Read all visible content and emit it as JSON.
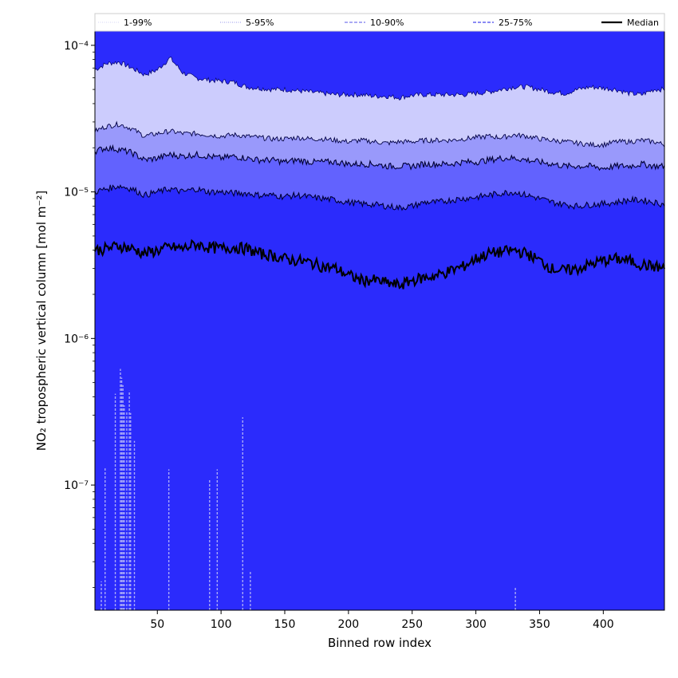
{
  "chart_data": {
    "type": "area",
    "title": "",
    "xlabel": "Binned row index",
    "ylabel": "NO₂ tropospheric vertical column [mol m⁻²]",
    "xlim": [
      1,
      448
    ],
    "ylim": [
      1.4e-08,
      0.000125
    ],
    "yscale": "log",
    "grid": false,
    "legend_position": "top",
    "x_ticks": [
      50,
      100,
      150,
      200,
      250,
      300,
      350,
      400
    ],
    "x_tick_labels": [
      "50",
      "100",
      "150",
      "200",
      "250",
      "300",
      "350",
      "400"
    ],
    "y_ticks": [
      1e-07,
      1e-06,
      1e-05,
      0.0001
    ],
    "y_tick_labels": [
      "10⁻⁷",
      "10⁻⁶",
      "10⁻⁵",
      "10⁻⁴"
    ],
    "legend": [
      {
        "label": "1-99%",
        "color": "#ddddf6",
        "style": "dotted"
      },
      {
        "label": "5-95%",
        "color": "#aaaaee",
        "style": "dotted"
      },
      {
        "label": "10-90%",
        "color": "#7777ee",
        "style": "dashed"
      },
      {
        "label": "25-75%",
        "color": "#4444ee",
        "style": "dashed"
      },
      {
        "label": "Median",
        "color": "#000000",
        "style": "solid"
      }
    ],
    "band_colors": {
      "p5_p95": "#ccccfd",
      "p10_p90": "#9999fb",
      "p25_p75": "#6262fe",
      "inner": "#2b2bfc"
    },
    "x": [
      1,
      10,
      20,
      30,
      40,
      50,
      60,
      70,
      80,
      90,
      100,
      110,
      120,
      130,
      140,
      150,
      160,
      170,
      180,
      190,
      200,
      210,
      220,
      230,
      240,
      250,
      260,
      270,
      280,
      290,
      300,
      310,
      320,
      330,
      340,
      350,
      360,
      370,
      380,
      390,
      400,
      410,
      420,
      430,
      440,
      448
    ],
    "series": [
      {
        "name": "5-95%",
        "lower": [
          2.6e-05,
          2.8e-05,
          2.9e-05,
          2.7e-05,
          2.4e-05,
          2.5e-05,
          2.6e-05,
          2.5e-05,
          2.5e-05,
          2.45e-05,
          2.4e-05,
          2.45e-05,
          2.4e-05,
          2.35e-05,
          2.3e-05,
          2.3e-05,
          2.35e-05,
          2.3e-05,
          2.3e-05,
          2.25e-05,
          2.2e-05,
          2.25e-05,
          2.2e-05,
          2.15e-05,
          2.2e-05,
          2.2e-05,
          2.25e-05,
          2.25e-05,
          2.25e-05,
          2.3e-05,
          2.35e-05,
          2.4e-05,
          2.35e-05,
          2.45e-05,
          2.4e-05,
          2.3e-05,
          2.25e-05,
          2.2e-05,
          2.15e-05,
          2.1e-05,
          2.1e-05,
          2.2e-05,
          2.2e-05,
          2.25e-05,
          2.2e-05,
          2.1e-05
        ],
        "upper": [
          6.8e-05,
          7.5e-05,
          7.7e-05,
          7e-05,
          6.3e-05,
          6.8e-05,
          8.2e-05,
          6.5e-05,
          6e-05,
          5.8e-05,
          5.7e-05,
          5.6e-05,
          5.2e-05,
          5.1e-05,
          5e-05,
          5e-05,
          4.9e-05,
          4.8e-05,
          4.7e-05,
          4.6e-05,
          4.6e-05,
          4.6e-05,
          4.5e-05,
          4.5e-05,
          4.4e-05,
          4.55e-05,
          4.6e-05,
          4.6e-05,
          4.6e-05,
          4.6e-05,
          4.7e-05,
          4.8e-05,
          5e-05,
          5.2e-05,
          5.2e-05,
          5e-05,
          4.8e-05,
          4.7e-05,
          5e-05,
          5.2e-05,
          5.1e-05,
          5e-05,
          4.7e-05,
          4.6e-05,
          5e-05,
          5e-05
        ]
      },
      {
        "name": "10-90%",
        "lower": [
          1.9e-05,
          2e-05,
          1.95e-05,
          1.85e-05,
          1.65e-05,
          1.7e-05,
          1.8e-05,
          1.75e-05,
          1.8e-05,
          1.75e-05,
          1.7e-05,
          1.75e-05,
          1.7e-05,
          1.65e-05,
          1.65e-05,
          1.6e-05,
          1.65e-05,
          1.6e-05,
          1.6e-05,
          1.6e-05,
          1.55e-05,
          1.55e-05,
          1.55e-05,
          1.5e-05,
          1.5e-05,
          1.5e-05,
          1.55e-05,
          1.55e-05,
          1.55e-05,
          1.6e-05,
          1.6e-05,
          1.65e-05,
          1.7e-05,
          1.7e-05,
          1.65e-05,
          1.6e-05,
          1.55e-05,
          1.5e-05,
          1.5e-05,
          1.5e-05,
          1.45e-05,
          1.5e-05,
          1.5e-05,
          1.55e-05,
          1.5e-05,
          1.5e-05
        ],
        "upper": [
          2.6e-05,
          2.8e-05,
          2.9e-05,
          2.7e-05,
          2.4e-05,
          2.5e-05,
          2.6e-05,
          2.5e-05,
          2.5e-05,
          2.45e-05,
          2.4e-05,
          2.45e-05,
          2.4e-05,
          2.35e-05,
          2.3e-05,
          2.3e-05,
          2.35e-05,
          2.3e-05,
          2.3e-05,
          2.25e-05,
          2.2e-05,
          2.25e-05,
          2.2e-05,
          2.15e-05,
          2.2e-05,
          2.2e-05,
          2.25e-05,
          2.25e-05,
          2.25e-05,
          2.3e-05,
          2.35e-05,
          2.4e-05,
          2.35e-05,
          2.45e-05,
          2.4e-05,
          2.3e-05,
          2.25e-05,
          2.2e-05,
          2.15e-05,
          2.1e-05,
          2.1e-05,
          2.2e-05,
          2.2e-05,
          2.25e-05,
          2.2e-05,
          2.1e-05
        ]
      },
      {
        "name": "25-75%",
        "lower": [
          1e-05,
          1.05e-05,
          1.1e-05,
          1.05e-05,
          9.5e-06,
          1e-05,
          1.05e-05,
          1e-05,
          1.05e-05,
          1e-05,
          1e-05,
          9.8e-06,
          9.8e-06,
          9.5e-06,
          9.5e-06,
          9.3e-06,
          9.5e-06,
          9.2e-06,
          9e-06,
          8.8e-06,
          8.5e-06,
          8.3e-06,
          8.2e-06,
          8e-06,
          7.8e-06,
          8e-06,
          8.5e-06,
          8.5e-06,
          8.8e-06,
          9e-06,
          9.2e-06,
          9.5e-06,
          9.8e-06,
          1e-05,
          9.5e-06,
          9e-06,
          8.5e-06,
          8.2e-06,
          8e-06,
          8.2e-06,
          8.3e-06,
          8.5e-06,
          8.8e-06,
          8.8e-06,
          8.5e-06,
          8.2e-06
        ],
        "upper": [
          1.9e-05,
          2e-05,
          1.95e-05,
          1.85e-05,
          1.65e-05,
          1.7e-05,
          1.8e-05,
          1.75e-05,
          1.8e-05,
          1.75e-05,
          1.7e-05,
          1.75e-05,
          1.7e-05,
          1.65e-05,
          1.65e-05,
          1.6e-05,
          1.65e-05,
          1.6e-05,
          1.6e-05,
          1.6e-05,
          1.55e-05,
          1.55e-05,
          1.55e-05,
          1.5e-05,
          1.5e-05,
          1.5e-05,
          1.55e-05,
          1.55e-05,
          1.55e-05,
          1.6e-05,
          1.6e-05,
          1.65e-05,
          1.7e-05,
          1.7e-05,
          1.65e-05,
          1.6e-05,
          1.55e-05,
          1.5e-05,
          1.5e-05,
          1.5e-05,
          1.45e-05,
          1.5e-05,
          1.5e-05,
          1.55e-05,
          1.5e-05,
          1.5e-05
        ]
      },
      {
        "name": "Median",
        "values": [
          4e-06,
          4.1e-06,
          4.3e-06,
          4.1e-06,
          3.8e-06,
          4e-06,
          4.2e-06,
          4.1e-06,
          4.4e-06,
          4.2e-06,
          4.1e-06,
          4.2e-06,
          4.1e-06,
          3.8e-06,
          3.7e-06,
          3.5e-06,
          3.4e-06,
          3.3e-06,
          3.1e-06,
          3e-06,
          2.7e-06,
          2.5e-06,
          2.5e-06,
          2.4e-06,
          2.3e-06,
          2.5e-06,
          2.6e-06,
          2.7e-06,
          2.9e-06,
          3.1e-06,
          3.5e-06,
          3.8e-06,
          3.9e-06,
          4e-06,
          3.8e-06,
          3.4e-06,
          3e-06,
          2.9e-06,
          3e-06,
          3.2e-06,
          3.4e-06,
          3.5e-06,
          3.4e-06,
          3.2e-06,
          3.1e-06,
          3e-06
        ]
      },
      {
        "name": "1-99% lower spikes",
        "x": [
          6,
          9,
          17,
          21,
          22,
          23,
          24,
          26,
          28,
          29,
          32,
          59,
          91,
          97,
          117,
          123,
          331
        ],
        "values": [
          2.2e-08,
          1.3e-07,
          4.2e-07,
          6.2e-07,
          5.4e-07,
          4.8e-07,
          3.5e-07,
          3.2e-07,
          4.4e-07,
          3.1e-07,
          2e-07,
          1.28e-07,
          1.1e-07,
          1.28e-07,
          2.9e-07,
          2.6e-08,
          2e-08
        ]
      }
    ]
  }
}
